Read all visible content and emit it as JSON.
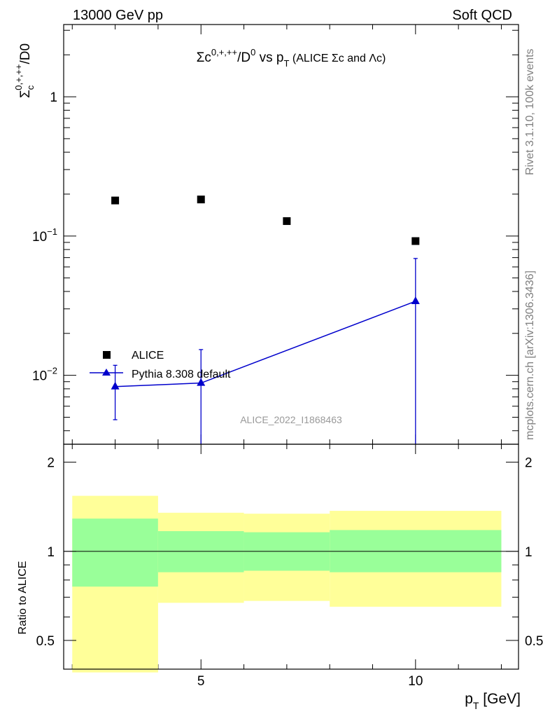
{
  "header": {
    "left": "13000 GeV pp",
    "right": "Soft QCD"
  },
  "side_labels": {
    "rivet": "Rivet 3.1.10,  100k events",
    "mcplots": "mcplots.cern.ch [arXiv:1306.3436]"
  },
  "watermark": "ALICE_2022_I1868463",
  "colors": {
    "alice": "#000000",
    "pythia": "#0000cc",
    "band_outer": "#ffff99",
    "band_inner": "#99ff99"
  },
  "chart_data": [
    {
      "type": "scatter",
      "log_y": true,
      "title": "Σc^{0,+,++}/D^0 vs p_T (ALICE Σc and Λc)",
      "ylabel": "Σc^{0,+,++}/D0",
      "xlabel": "",
      "xlim": [
        1.8,
        12.4
      ],
      "ylim": [
        0.0032,
        3.3
      ],
      "x_ticks": [
        "5",
        "10"
      ],
      "y_ticks": [
        "1",
        "10^-1",
        "10^-2"
      ],
      "legend_position": "bottom-left",
      "series": [
        {
          "name": "ALICE",
          "marker": "square",
          "x": [
            3,
            5,
            7,
            10
          ],
          "y": [
            0.18,
            0.183,
            0.128,
            0.092
          ]
        },
        {
          "name": "Pythia 8.308 default",
          "marker": "triangle",
          "x": [
            3,
            5,
            10
          ],
          "y": [
            0.0083,
            0.0088,
            0.034
          ],
          "y_err_low": [
            0.0048,
            0.0032,
            0.0032
          ],
          "y_err_high": [
            0.0118,
            0.0153,
            0.069
          ]
        }
      ]
    },
    {
      "type": "area",
      "ylabel": "Ratio to ALICE",
      "xlabel": "p_T [GeV]",
      "xlim": [
        1.8,
        12.4
      ],
      "ylim": [
        0.4,
        2.3
      ],
      "y_ticks": [
        "0.5",
        "1",
        "2"
      ],
      "x_ticks": [
        "5",
        "10"
      ],
      "reference_line": 1,
      "bins": [
        {
          "x_low": 2,
          "x_high": 4,
          "outer_low": 0.39,
          "outer_high": 1.54,
          "inner_low": 0.76,
          "inner_high": 1.29
        },
        {
          "x_low": 4,
          "x_high": 6,
          "outer_low": 0.67,
          "outer_high": 1.35,
          "inner_low": 0.85,
          "inner_high": 1.17
        },
        {
          "x_low": 6,
          "x_high": 8,
          "outer_low": 0.68,
          "outer_high": 1.34,
          "inner_low": 0.86,
          "inner_high": 1.16
        },
        {
          "x_low": 8,
          "x_high": 12,
          "outer_low": 0.65,
          "outer_high": 1.37,
          "inner_low": 0.85,
          "inner_high": 1.18
        }
      ]
    }
  ]
}
